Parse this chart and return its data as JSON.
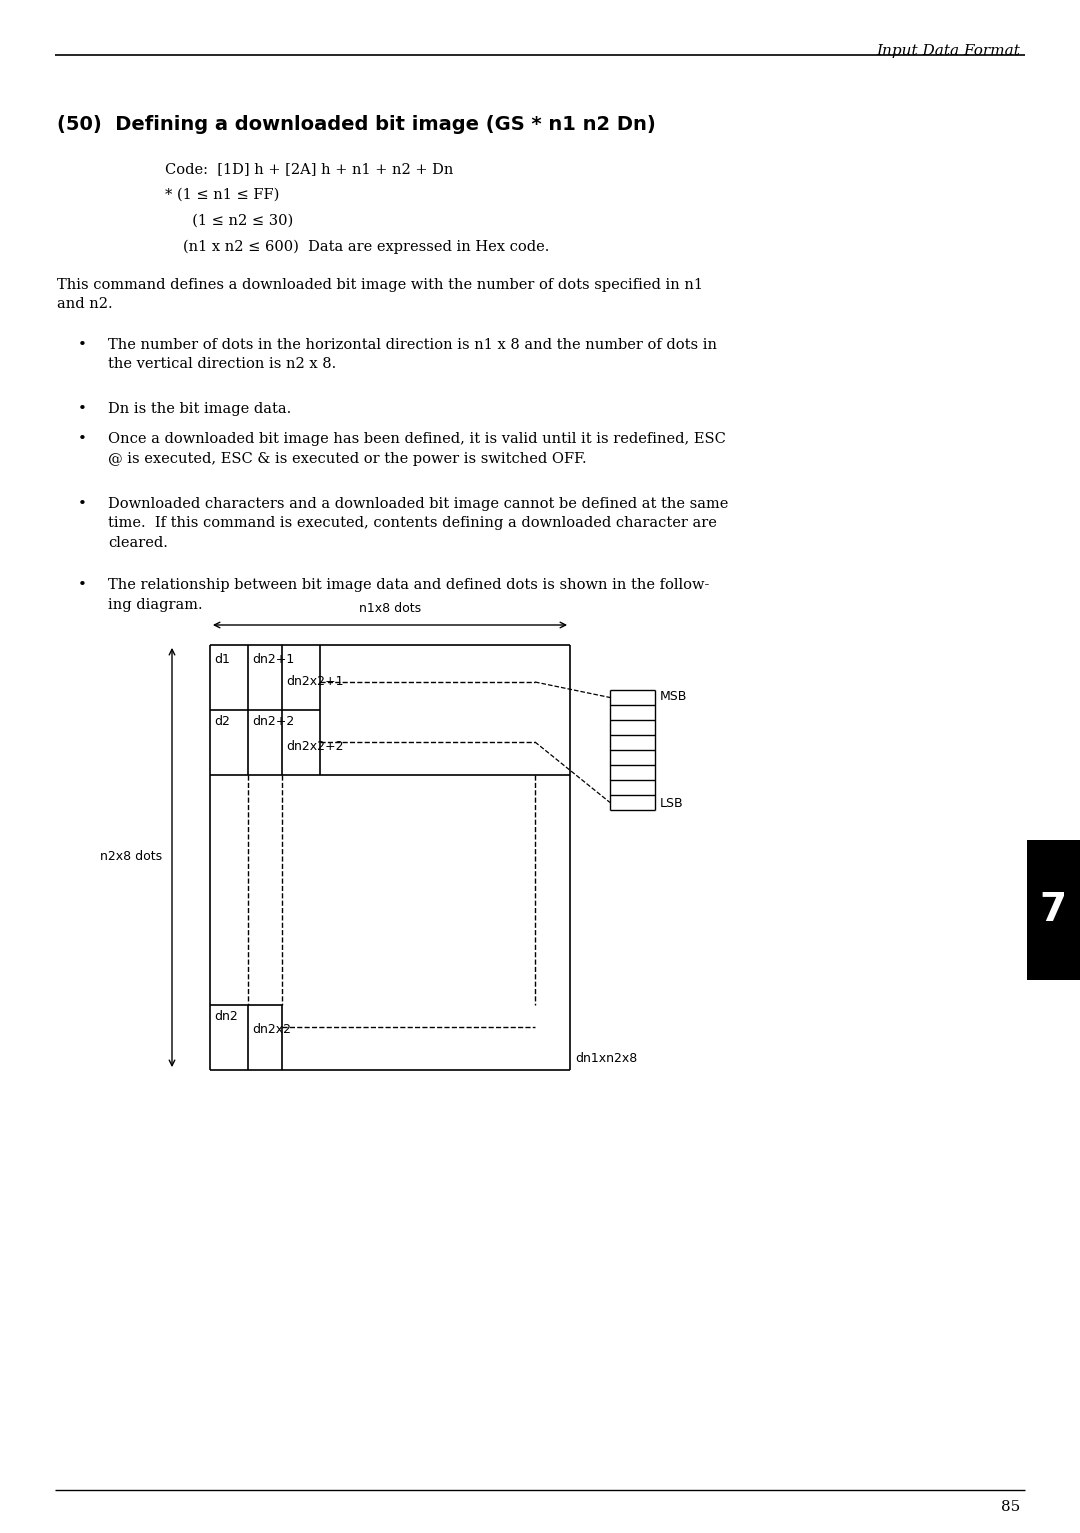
{
  "page_title": "Input Data Format",
  "page_number": "85",
  "section_title": "(50)  Defining a downloaded bit image (GS * n1 n2 Dn)",
  "code_line1": "Code:  [1D] h + [2A] h + n1 + n2 + Dn",
  "code_line2": "* (1 ≤ n1 ≤ FF)",
  "code_line3": "  (1 ≤ n2 ≤ 30)",
  "code_line4": "(n1 x n2 ≤ 600)  Data are expressed in Hex code.",
  "para1": "This command defines a downloaded bit image with the number of dots specified in n1\nand n2.",
  "bullet1": "The number of dots in the horizontal direction is n1 x 8 and the number of dots in\nthe vertical direction is n2 x 8.",
  "bullet2": "Dn is the bit image data.",
  "bullet3": "Once a downloaded bit image has been defined, it is valid until it is redefined, ESC\n@ is executed, ESC & is executed or the power is switched OFF.",
  "bullet4": "Downloaded characters and a downloaded bit image cannot be defined at the same\ntime.  If this command is executed, contents defining a downloaded character are\ncleared.",
  "bullet5": "The relationship between bit image data and defined dots is shown in the follow-\ning diagram.",
  "bg_color": "#ffffff",
  "text_color": "#000000",
  "tab_num": "7"
}
